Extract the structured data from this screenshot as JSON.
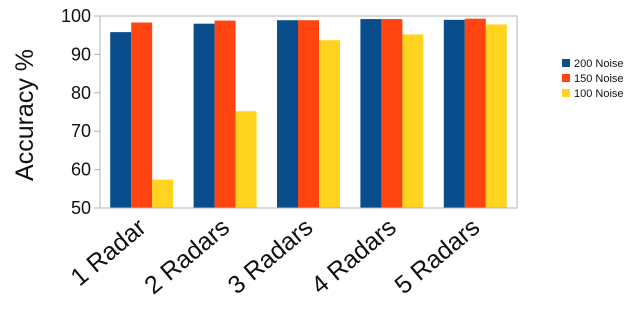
{
  "chart_data": {
    "type": "bar",
    "ylabel": "Accuracy %",
    "xlabel": "",
    "categories": [
      "1 Radar",
      "2 Radars",
      "3 Radars",
      "4 Radars",
      "5 Radars"
    ],
    "series": [
      {
        "name": "200 Noise",
        "color": "#0a4d8c",
        "values": [
          95.8,
          98.0,
          98.9,
          99.2,
          99.0
        ]
      },
      {
        "name": "150 Noise",
        "color": "#ff4411",
        "values": [
          98.3,
          98.8,
          98.9,
          99.2,
          99.3
        ]
      },
      {
        "name": "100 Noise",
        "color": "#ffd320",
        "values": [
          57.4,
          75.2,
          93.7,
          95.2,
          97.8
        ]
      }
    ],
    "ylim": [
      50,
      100
    ],
    "yticks": [
      50,
      60,
      70,
      80,
      90,
      100
    ],
    "grid": false,
    "legend": "right"
  }
}
